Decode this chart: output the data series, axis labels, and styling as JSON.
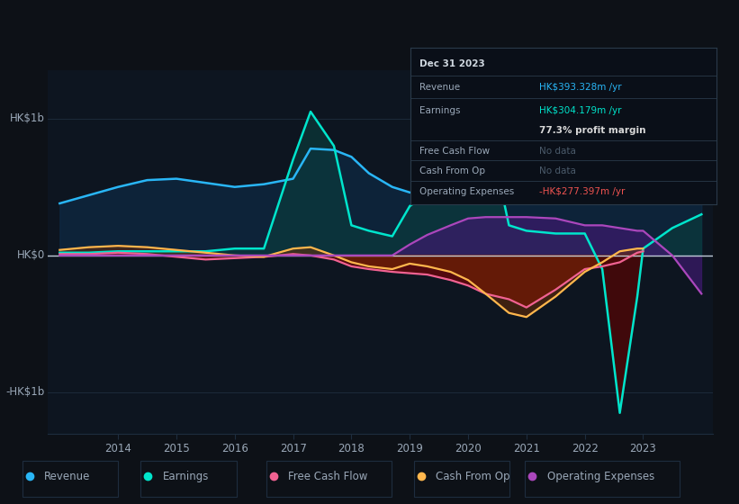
{
  "bg_color": "#0d1117",
  "plot_bg_color": "#0d1520",
  "title": "Dec 31 2023",
  "ylabel_top": "HK$1b",
  "ylabel_bottom": "-HK$1b",
  "ylabel_zero": "HK$0",
  "years": [
    2013.0,
    2013.5,
    2014.0,
    2014.5,
    2015.0,
    2015.5,
    2016.0,
    2016.5,
    2017.0,
    2017.3,
    2017.7,
    2018.0,
    2018.3,
    2018.7,
    2019.0,
    2019.3,
    2019.7,
    2020.0,
    2020.3,
    2020.5,
    2020.7,
    2021.0,
    2021.5,
    2022.0,
    2022.3,
    2022.6,
    2022.9,
    2023.0,
    2023.5,
    2024.0
  ],
  "revenue": [
    0.38,
    0.44,
    0.5,
    0.55,
    0.56,
    0.53,
    0.5,
    0.52,
    0.56,
    0.78,
    0.77,
    0.72,
    0.6,
    0.5,
    0.46,
    0.44,
    0.44,
    0.46,
    0.46,
    0.47,
    0.46,
    0.43,
    0.42,
    0.43,
    0.43,
    0.43,
    0.42,
    0.42,
    0.44,
    0.39
  ],
  "earnings": [
    0.02,
    0.02,
    0.03,
    0.03,
    0.03,
    0.03,
    0.05,
    0.05,
    0.7,
    1.05,
    0.8,
    0.22,
    0.18,
    0.14,
    0.36,
    0.45,
    0.55,
    0.64,
    0.65,
    0.62,
    0.22,
    0.18,
    0.16,
    0.16,
    -0.1,
    -1.15,
    -0.3,
    0.05,
    0.2,
    0.3
  ],
  "free_cash_flow": [
    0.01,
    0.01,
    0.02,
    0.01,
    -0.01,
    -0.03,
    -0.02,
    -0.01,
    0.01,
    0.0,
    -0.03,
    -0.08,
    -0.1,
    -0.12,
    -0.13,
    -0.14,
    -0.18,
    -0.22,
    -0.28,
    -0.3,
    -0.32,
    -0.38,
    -0.25,
    -0.1,
    -0.08,
    -0.05,
    0.02,
    0.03,
    null,
    null
  ],
  "cash_from_op": [
    0.04,
    0.06,
    0.07,
    0.06,
    0.04,
    0.02,
    0.0,
    -0.01,
    0.05,
    0.06,
    0.0,
    -0.05,
    -0.08,
    -0.1,
    -0.06,
    -0.08,
    -0.12,
    -0.18,
    -0.28,
    -0.35,
    -0.42,
    -0.45,
    -0.3,
    -0.12,
    -0.05,
    0.03,
    0.05,
    0.05,
    null,
    null
  ],
  "operating_expenses": [
    0.0,
    0.0,
    0.0,
    0.0,
    0.0,
    0.0,
    0.0,
    0.0,
    0.0,
    0.0,
    0.0,
    0.0,
    0.0,
    0.0,
    0.08,
    0.15,
    0.22,
    0.27,
    0.28,
    0.28,
    0.28,
    0.28,
    0.27,
    0.22,
    0.22,
    0.2,
    0.18,
    0.18,
    0.0,
    -0.28
  ],
  "revenue_color": "#29b6f6",
  "earnings_color": "#00e5cc",
  "free_cash_flow_color": "#f06292",
  "cash_from_op_color": "#ffb74d",
  "operating_expenses_color": "#ab47bc",
  "grid_color": "#1e2d3e",
  "zero_line_color": "#9aa8b8",
  "info_box": {
    "date": "Dec 31 2023",
    "revenue_label": "Revenue",
    "revenue_value": "HK$393.328m /yr",
    "revenue_color": "#29b6f6",
    "earnings_label": "Earnings",
    "earnings_value": "HK$304.179m /yr",
    "earnings_color": "#00e5cc",
    "margin_text": "77.3% profit margin",
    "fcf_label": "Free Cash Flow",
    "fcf_value": "No data",
    "cop_label": "Cash From Op",
    "cop_value": "No data",
    "opex_label": "Operating Expenses",
    "opex_value": "-HK$277.397m /yr",
    "opex_color": "#ef5350",
    "text_color": "#9aa8b8",
    "nodata_color": "#4a5a6a",
    "box_bg": "#0a0f18",
    "box_border": "#2a3a4a",
    "title_color": "#d0d8e0"
  },
  "legend": [
    {
      "label": "Revenue",
      "color": "#29b6f6"
    },
    {
      "label": "Earnings",
      "color": "#00e5cc"
    },
    {
      "label": "Free Cash Flow",
      "color": "#f06292"
    },
    {
      "label": "Cash From Op",
      "color": "#ffb74d"
    },
    {
      "label": "Operating Expenses",
      "color": "#ab47bc"
    }
  ],
  "ylim": [
    -1.3,
    1.35
  ],
  "xlim": [
    2012.8,
    2024.2
  ]
}
